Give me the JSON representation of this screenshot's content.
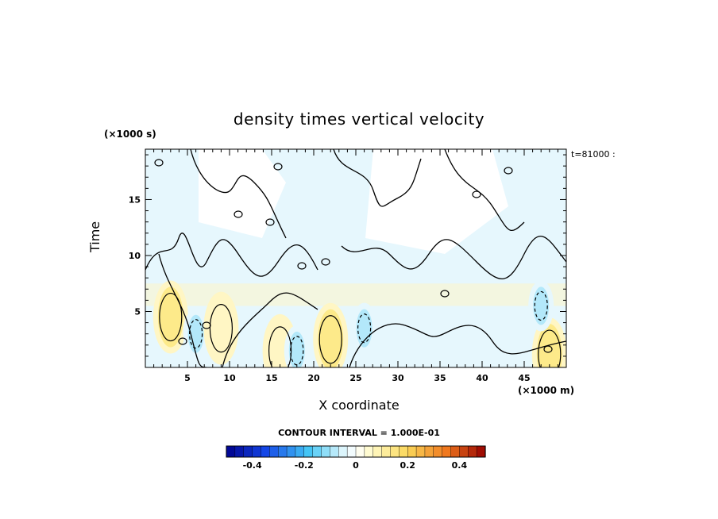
{
  "chart_data": {
    "type": "heatmap",
    "title": "density times vertical velocity",
    "xlabel": "X coordinate",
    "ylabel": "Time",
    "x_unit_label": "(×1000 m)",
    "y_unit_label": "(×1000 s)",
    "time_label": "t=81000 :",
    "contour_interval_label": "CONTOUR INTERVAL = 1.000E-01",
    "xlim": [
      0,
      50
    ],
    "ylim": [
      0,
      19.5
    ],
    "x_ticks": [
      5,
      10,
      15,
      20,
      25,
      30,
      35,
      40,
      45
    ],
    "y_ticks": [
      5,
      10,
      15
    ],
    "colorbar": {
      "range": [
        -0.5,
        0.5
      ],
      "tick_values": [
        -0.4,
        -0.2,
        0,
        0.2,
        0.4
      ],
      "tick_labels": [
        "-0.4",
        "-0.2",
        "0",
        "0.2",
        "0.4"
      ],
      "levels": 30
    },
    "features": [
      {
        "x": 3,
        "y": 4.5,
        "value": 0.2,
        "sign": "positive"
      },
      {
        "x": 6,
        "y": 3.0,
        "value": -0.1,
        "sign": "negative"
      },
      {
        "x": 9,
        "y": 3.5,
        "value": 0.1,
        "sign": "positive"
      },
      {
        "x": 16,
        "y": 1.5,
        "value": 0.1,
        "sign": "positive"
      },
      {
        "x": 18,
        "y": 1.5,
        "value": -0.1,
        "sign": "negative"
      },
      {
        "x": 22,
        "y": 2.5,
        "value": 0.2,
        "sign": "positive"
      },
      {
        "x": 26,
        "y": 3.5,
        "value": -0.1,
        "sign": "negative"
      },
      {
        "x": 48,
        "y": 1.2,
        "value": 0.15,
        "sign": "positive"
      },
      {
        "x": 47,
        "y": 5.5,
        "value": -0.08,
        "sign": "negative"
      }
    ]
  },
  "colors": {
    "zero": "#ffffff",
    "pos_light": "#fff6c4",
    "pos_mid": "#fdea8a",
    "neg_light": "#e6f7fd",
    "neg_mid": "#b3e8fa"
  }
}
